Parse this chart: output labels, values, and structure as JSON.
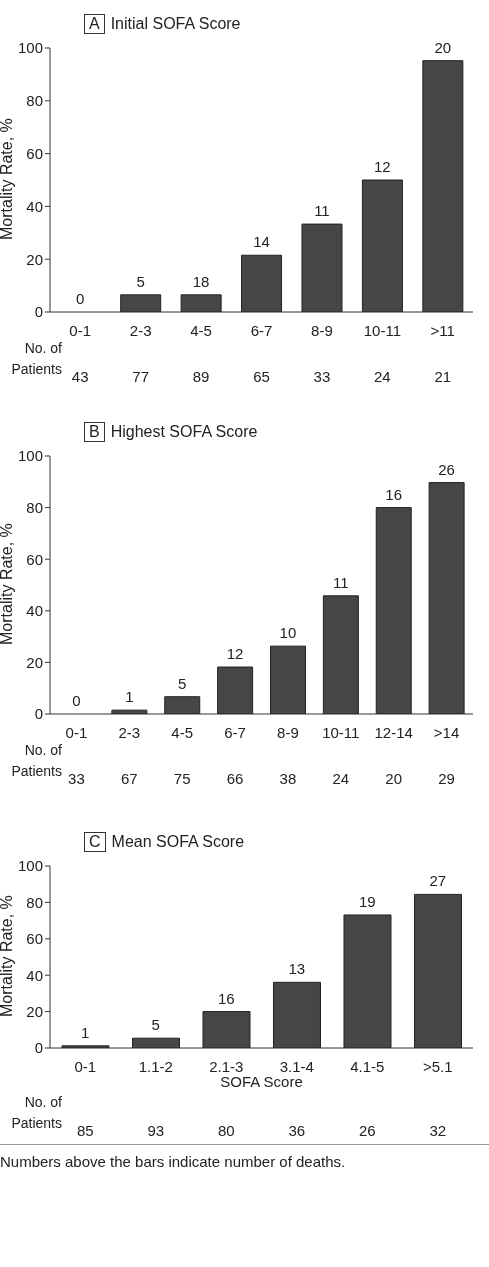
{
  "chart_data": [
    {
      "type": "bar",
      "title": "Initial SOFA Score",
      "ylabel": "Mortality Rate, %",
      "categories": [
        "0-1",
        "2-3",
        "4-5",
        "6-7",
        "8-9",
        "10-11",
        ">11"
      ],
      "values": [
        0,
        6.5,
        6.5,
        21.5,
        33.3,
        50,
        95.2
      ],
      "color": "#464646",
      "ylim": [
        0,
        100
      ],
      "yticks": [
        0,
        20,
        40,
        60,
        80,
        100
      ],
      "grid": false,
      "legend": false,
      "annotations": [
        "A",
        "No. of Patients",
        "43",
        "77",
        "89",
        "65",
        "33",
        "24",
        "21",
        {
          "text": "0",
          "x": "0-1",
          "y": 0
        },
        {
          "text": "5",
          "x": "2-3",
          "y": 6.5
        },
        {
          "text": "18",
          "x": "4-5",
          "y": 6.5
        },
        {
          "text": "14",
          "x": "6-7",
          "y": 21.5
        },
        {
          "text": "11",
          "x": "8-9",
          "y": 33.3
        },
        {
          "text": "12",
          "x": "10-11",
          "y": 50
        },
        {
          "text": "20",
          "x": ">11",
          "y": 95.2
        }
      ]
    },
    {
      "type": "bar",
      "title": "Highest SOFA Score",
      "ylabel": "Mortality Rate, %",
      "categories": [
        "0-1",
        "2-3",
        "4-5",
        "6-7",
        "8-9",
        "10-11",
        "12-14",
        ">14"
      ],
      "values": [
        0,
        1.5,
        6.7,
        18.2,
        26.3,
        45.8,
        80,
        89.7
      ],
      "color": "#464646",
      "ylim": [
        0,
        100
      ],
      "yticks": [
        0,
        20,
        40,
        60,
        80,
        100
      ],
      "grid": false,
      "legend": false,
      "annotations": [
        "B",
        "No. of Patients",
        "33",
        "67",
        "75",
        "66",
        "38",
        "24",
        "20",
        "29",
        {
          "text": "0",
          "x": "0-1",
          "y": 0
        },
        {
          "text": "1",
          "x": "2-3",
          "y": 1.5
        },
        {
          "text": "5",
          "x": "4-5",
          "y": 6.7
        },
        {
          "text": "12",
          "x": "6-7",
          "y": 18.2
        },
        {
          "text": "10",
          "x": "8-9",
          "y": 26.3
        },
        {
          "text": "11",
          "x": "10-11",
          "y": 45.8
        },
        {
          "text": "16",
          "x": "12-14",
          "y": 80
        },
        {
          "text": "26",
          "x": ">14",
          "y": 89.7
        }
      ]
    },
    {
      "type": "bar",
      "title": "Mean SOFA Score",
      "ylabel": "Mortality Rate, %",
      "xlabel": "SOFA Score",
      "categories": [
        "0-1",
        "1.1-2",
        "2.1-3",
        "3.1-4",
        "4.1-5",
        ">5.1"
      ],
      "values": [
        1.2,
        5.4,
        20,
        36.1,
        73.1,
        84.4
      ],
      "color": "#464646",
      "ylim": [
        0,
        100
      ],
      "yticks": [
        0,
        20,
        40,
        60,
        80,
        100
      ],
      "grid": false,
      "legend": false,
      "annotations": [
        "C",
        "No. of Patients",
        "85",
        "93",
        "80",
        "36",
        "26",
        "32",
        "Numbers above the bars indicate number of deaths.",
        {
          "text": "1",
          "x": "0-1",
          "y": 1.2
        },
        {
          "text": "5",
          "x": "1.1-2",
          "y": 5.4
        },
        {
          "text": "16",
          "x": "2.1-3",
          "y": 20
        },
        {
          "text": "13",
          "x": "3.1-4",
          "y": 36.1
        },
        {
          "text": "19",
          "x": "4.1-5",
          "y": 73.1
        },
        {
          "text": "27",
          "x": ">5.1",
          "y": 84.4
        }
      ]
    }
  ]
}
